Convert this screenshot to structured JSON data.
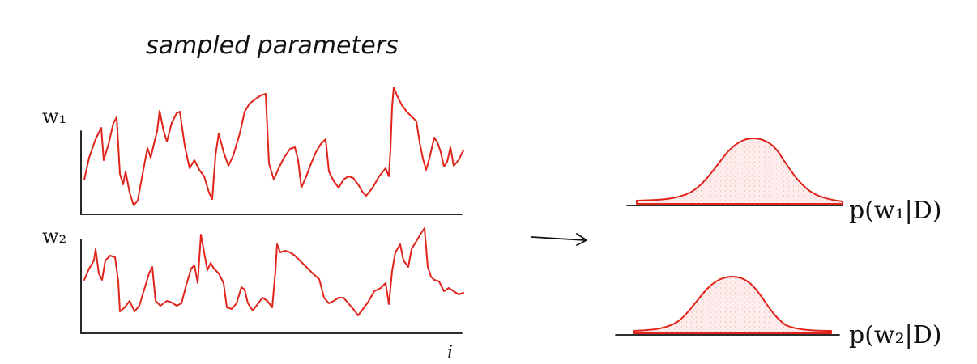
{
  "title": "sampled parameters",
  "panels": [
    {
      "label": "w₁",
      "axis_label": ""
    },
    {
      "label": "w₂",
      "axis_label": "i"
    }
  ],
  "posteriors": [
    {
      "label": "p(w₁|D)"
    },
    {
      "label": "p(w₂|D)"
    }
  ],
  "colors": {
    "trace": "#e0241b",
    "ink": "#111111",
    "fill": "#fbe3e1"
  },
  "arrow_icon": "right-arrow-icon"
}
